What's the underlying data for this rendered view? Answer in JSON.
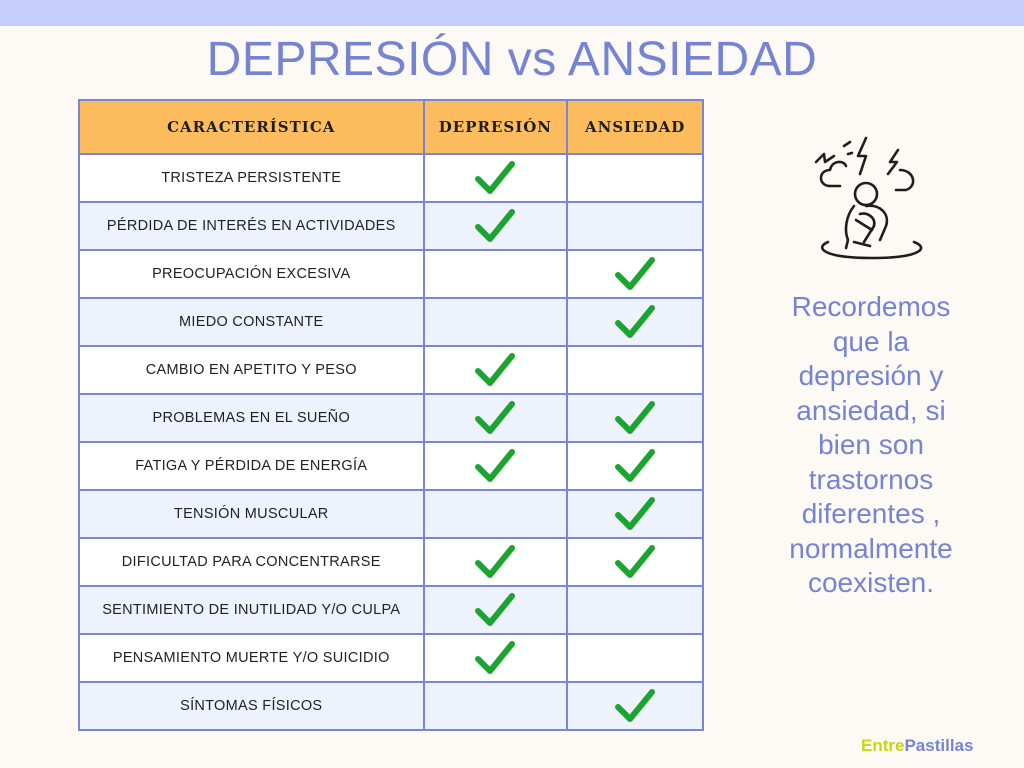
{
  "title": "DEPRESIÓN vs ANSIEDAD",
  "table": {
    "headers": [
      "CARACTERÍSTICA",
      "DEPRESIÓN",
      "ANSIEDAD"
    ],
    "rows": [
      {
        "label": "TRISTEZA PERSISTENTE",
        "depresion": true,
        "ansiedad": false
      },
      {
        "label": "PÉRDIDA DE INTERÉS EN ACTIVIDADES",
        "depresion": true,
        "ansiedad": false
      },
      {
        "label": "PREOCUPACIÓN EXCESIVA",
        "depresion": false,
        "ansiedad": true
      },
      {
        "label": "MIEDO CONSTANTE",
        "depresion": false,
        "ansiedad": true
      },
      {
        "label": "CAMBIO EN APETITO Y PESO",
        "depresion": true,
        "ansiedad": false
      },
      {
        "label": "PROBLEMAS EN EL SUEÑO",
        "depresion": true,
        "ansiedad": true
      },
      {
        "label": "FATIGA Y PÉRDIDA DE ENERGÍA",
        "depresion": true,
        "ansiedad": true
      },
      {
        "label": "TENSIÓN MUSCULAR",
        "depresion": false,
        "ansiedad": true
      },
      {
        "label": "DIFICULTAD PARA CONCENTRARSE",
        "depresion": true,
        "ansiedad": true
      },
      {
        "label": "SENTIMIENTO DE INUTILIDAD Y/O CULPA",
        "depresion": true,
        "ansiedad": false
      },
      {
        "label": "PENSAMIENTO MUERTE Y/O SUICIDIO",
        "depresion": true,
        "ansiedad": false
      },
      {
        "label": "SÍNTOMAS FÍSICOS",
        "depresion": false,
        "ansiedad": true
      }
    ]
  },
  "note_lines": [
    "Recordemos",
    "que la",
    "depresión y",
    "ansiedad, si",
    "bien son",
    "trastornos",
    "diferentes ,",
    "normalmente",
    "coexisten."
  ],
  "brand": {
    "part1": "Entre",
    "part2": "Pastillas"
  },
  "colors": {
    "title": "#7583d3",
    "header_bg": "#fdbd5f",
    "grid": "#7a86d4",
    "check": "#1aa52e",
    "brand_part1": "#c9d60f",
    "brand_part2": "#7583d3"
  },
  "icons": {
    "check": "check-mark-icon",
    "illustration": "anxious-person-icon"
  }
}
